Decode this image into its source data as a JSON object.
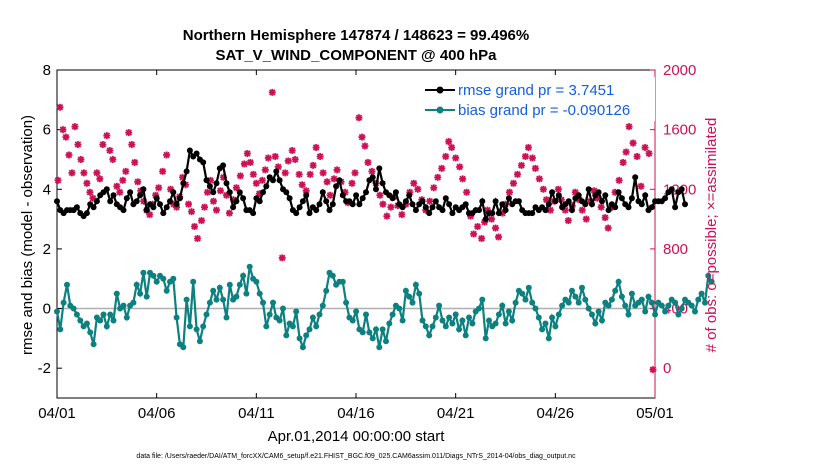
{
  "chart_data": {
    "type": "line",
    "title_line1": "Northern Hemisphere 147874 / 148623 = 99.496%",
    "title_line2": "SAT_V_WIND_COMPONENT @ 400 hPa",
    "xlabel": "Apr.01,2014 00:00:00 start",
    "ylabel_left": "rmse and bias (model - observation)",
    "ylabel_right": "# of obs: o=possible; ×=assimilated",
    "footnote": "data file: /Users/raeder/DAI/ATM_forcXX/CAM6_setup/f.e21.FHIST_BGC.f09_025.CAM6assim.011/Diags_NTrS_2014-04/obs_diag_output.nc",
    "xlim": [
      0,
      30
    ],
    "ylim_left": [
      -3,
      8
    ],
    "ylim_right": [
      -200,
      2000
    ],
    "x_ticks": [
      0,
      5,
      10,
      15,
      20,
      25,
      30
    ],
    "x_tick_labels": [
      "04/01",
      "04/06",
      "04/11",
      "04/16",
      "04/21",
      "04/26",
      "05/01"
    ],
    "y_left_ticks": [
      -2,
      0,
      2,
      4,
      6,
      8
    ],
    "y_left_tick_labels": [
      "-2",
      "0",
      "2",
      "4",
      "6",
      "8"
    ],
    "y_right_ticks": [
      0,
      400,
      800,
      1200,
      1600,
      2000
    ],
    "y_right_tick_labels": [
      "0",
      "400",
      "800",
      "1200",
      "1600",
      "2000"
    ],
    "zero_line": 0,
    "legend_position": "top-right",
    "colors": {
      "rmse": "#000000",
      "bias": "#0d8080",
      "obs": "#cc1155",
      "legend_text": "#1060e0",
      "zero_line": "#b0b0b0"
    },
    "series": [
      {
        "name": "rmse grand pr = 3.7451",
        "axis": "left",
        "values": [
          3.6,
          3.3,
          3.2,
          3.3,
          3.3,
          3.3,
          3.4,
          3.2,
          3.1,
          3.2,
          3.5,
          3.4,
          3.6,
          3.8,
          3.9,
          4.0,
          3.6,
          3.8,
          3.5,
          3.4,
          3.3,
          3.7,
          3.9,
          3.5,
          3.6,
          3.8,
          4.0,
          3.3,
          3.5,
          3.4,
          3.7,
          3.5,
          3.2,
          3.4,
          3.6,
          3.9,
          3.5,
          3.7,
          4.2,
          4.6,
          5.3,
          5.1,
          5.2,
          5.0,
          4.9,
          4.3,
          4.1,
          3.9,
          4.2,
          4.7,
          4.8,
          4.2,
          3.9,
          3.4,
          3.6,
          3.9,
          3.7,
          3.3,
          3.3,
          3.2,
          3.7,
          3.6,
          3.9,
          4.1,
          4.4,
          4.3,
          4.6,
          4.3,
          4.0,
          3.9,
          3.7,
          3.3,
          3.2,
          3.4,
          3.6,
          3.8,
          3.2,
          3.4,
          3.3,
          3.5,
          3.9,
          3.6,
          3.3,
          3.5,
          4.1,
          4.3,
          3.8,
          3.6,
          3.6,
          3.5,
          3.8,
          3.5,
          3.7,
          3.9,
          4.3,
          4.4,
          4.0,
          4.7,
          4.2,
          3.9,
          3.8,
          3.7,
          3.9,
          3.5,
          3.4,
          3.6,
          3.8,
          3.5,
          3.3,
          3.5,
          3.6,
          3.4,
          3.2,
          3.4,
          3.6,
          3.4,
          3.3,
          3.7,
          3.5,
          3.2,
          3.4,
          3.3,
          3.4,
          3.5,
          3.2,
          3.2,
          3.3,
          3.3,
          3.6,
          3.0,
          3.2,
          3.2,
          3.6,
          3.2,
          3.5,
          3.3,
          3.7,
          3.5,
          3.6,
          3.6,
          3.3,
          3.2,
          3.2,
          3.2,
          3.4,
          3.3,
          3.4,
          3.3,
          3.5,
          3.9,
          3.6,
          3.8,
          3.4,
          3.5,
          3.6,
          3.3,
          3.7,
          3.8,
          3.6,
          3.5,
          4.0,
          3.5,
          3.8,
          3.9,
          3.6,
          3.8,
          3.3,
          3.5,
          3.4,
          3.9,
          3.7,
          3.5,
          3.4,
          3.7,
          4.4,
          3.6,
          3.5,
          3.8,
          3.3,
          3.4,
          3.6,
          3.6,
          3.6,
          3.7,
          3.9,
          4.0,
          3.4,
          3.9,
          4.0,
          3.5
        ],
        "x_start": 0.0,
        "x_step": 0.1667
      },
      {
        "name": "bias grand pr = -0.090126",
        "axis": "left",
        "values": [
          -0.1,
          -0.7,
          0.2,
          0.8,
          0.1,
          0.0,
          -0.2,
          -0.4,
          -0.6,
          -0.5,
          -0.8,
          -1.2,
          -0.3,
          -0.4,
          -0.2,
          -0.6,
          -0.2,
          -0.4,
          0.5,
          0.0,
          0.1,
          -0.3,
          0.1,
          0.2,
          0.8,
          0.5,
          1.2,
          0.4,
          1.2,
          1.1,
          0.9,
          1.1,
          1.0,
          0.6,
          0.9,
          1.0,
          -0.3,
          -1.2,
          -1.3,
          0.3,
          -0.6,
          0.9,
          -0.7,
          -1.1,
          -0.6,
          -0.2,
          0.2,
          0.6,
          0.3,
          0.7,
          0.3,
          -0.3,
          0.8,
          0.3,
          0.4,
          0.8,
          1.1,
          0.5,
          1.4,
          1.0,
          0.9,
          0.5,
          0.2,
          -0.6,
          -0.2,
          0.2,
          -0.3,
          -0.4,
          0.0,
          -0.9,
          -0.5,
          -0.6,
          -0.1,
          -1.0,
          -1.3,
          -0.9,
          -0.7,
          -0.3,
          -0.6,
          -0.2,
          0.1,
          0.6,
          1.2,
          1.1,
          0.8,
          0.9,
          0.9,
          0.2,
          -0.3,
          -0.4,
          -0.1,
          -0.7,
          -0.8,
          -0.2,
          -0.8,
          -1.0,
          -0.7,
          -1.3,
          -0.7,
          -1.1,
          -0.5,
          -0.2,
          0.1,
          0.0,
          -0.4,
          0.6,
          0.4,
          0.2,
          0.8,
          0.5,
          -0.4,
          -0.6,
          -0.9,
          -0.6,
          -0.3,
          0.1,
          -0.4,
          -0.6,
          -0.3,
          -0.5,
          -0.2,
          -0.7,
          -0.4,
          -0.9,
          -0.3,
          -0.5,
          -0.1,
          0.0,
          0.3,
          -1.0,
          -0.4,
          -0.6,
          -0.5,
          -0.2,
          0.1,
          -0.5,
          -0.1,
          -0.4,
          0.2,
          0.6,
          0.5,
          0.3,
          0.7,
          0.2,
          0.0,
          -0.3,
          -0.7,
          -0.5,
          -1.0,
          -0.3,
          -0.6,
          -0.2,
          0.1,
          0.3,
          0.2,
          0.6,
          0.4,
          0.2,
          0.7,
          0.3,
          0.0,
          -0.2,
          -0.5,
          -0.1,
          -0.4,
          0.2,
          0.1,
          0.3,
          0.6,
          0.9,
          0.4,
          0.1,
          -0.2,
          0.5,
          0.1,
          0.2,
          0.3,
          -0.1,
          0.4,
          0.2,
          -0.2,
          0.2,
          0.1,
          -0.1,
          0.1,
          0.3,
          0.2,
          -0.2,
          0.0,
          0.3,
          0.2,
          0.1,
          -0.1,
          0.3,
          0.5,
          0.2,
          1.1,
          0.9
        ],
        "x_start": 0.0,
        "x_step": 0.1667
      }
    ],
    "obs_points": [
      [
        0.05,
        1260
      ],
      [
        0.15,
        1750
      ],
      [
        0.3,
        1600
      ],
      [
        0.45,
        1550
      ],
      [
        0.6,
        1430
      ],
      [
        0.75,
        1310
      ],
      [
        0.9,
        1620
      ],
      [
        1.05,
        1500
      ],
      [
        1.2,
        1400
      ],
      [
        1.35,
        1310
      ],
      [
        1.5,
        1240
      ],
      [
        1.65,
        1180
      ],
      [
        1.8,
        1140
      ],
      [
        2.0,
        1310
      ],
      [
        2.15,
        1270
      ],
      [
        2.3,
        1500
      ],
      [
        2.5,
        1560
      ],
      [
        2.65,
        1460
      ],
      [
        2.8,
        1400
      ],
      [
        3.0,
        1220
      ],
      [
        3.15,
        1180
      ],
      [
        3.3,
        1260
      ],
      [
        3.45,
        1320
      ],
      [
        3.6,
        1580
      ],
      [
        3.75,
        1500
      ],
      [
        3.9,
        1380
      ],
      [
        4.05,
        1250
      ],
      [
        4.2,
        1190
      ],
      [
        4.35,
        1120
      ],
      [
        4.5,
        1060
      ],
      [
        4.65,
        1030
      ],
      [
        4.8,
        1100
      ],
      [
        4.95,
        1160
      ],
      [
        5.1,
        1210
      ],
      [
        5.3,
        1320
      ],
      [
        5.5,
        1430
      ],
      [
        5.7,
        1200
      ],
      [
        5.85,
        1100
      ],
      [
        6.0,
        1080
      ],
      [
        6.15,
        1150
      ],
      [
        6.3,
        1280
      ],
      [
        6.45,
        1230
      ],
      [
        6.6,
        1100
      ],
      [
        6.75,
        1050
      ],
      [
        6.9,
        950
      ],
      [
        7.05,
        870
      ],
      [
        7.25,
        990
      ],
      [
        7.4,
        1080
      ],
      [
        7.55,
        1180
      ],
      [
        7.7,
        1260
      ],
      [
        7.85,
        1120
      ],
      [
        8.0,
        1060
      ],
      [
        8.2,
        1190
      ],
      [
        8.35,
        1280
      ],
      [
        8.5,
        1160
      ],
      [
        8.65,
        1040
      ],
      [
        8.85,
        1130
      ],
      [
        9.0,
        1210
      ],
      [
        9.2,
        1290
      ],
      [
        9.4,
        1370
      ],
      [
        9.55,
        1440
      ],
      [
        9.7,
        1380
      ],
      [
        9.85,
        1300
      ],
      [
        10.0,
        1240
      ],
      [
        10.15,
        1170
      ],
      [
        10.3,
        1260
      ],
      [
        10.45,
        1330
      ],
      [
        10.6,
        1410
      ],
      [
        10.8,
        1850
      ],
      [
        10.95,
        1420
      ],
      [
        11.1,
        1350
      ],
      [
        11.3,
        740
      ],
      [
        11.45,
        1310
      ],
      [
        11.6,
        1390
      ],
      [
        11.8,
        1460
      ],
      [
        11.95,
        1400
      ],
      [
        12.15,
        1300
      ],
      [
        12.3,
        1230
      ],
      [
        12.5,
        1190
      ],
      [
        12.7,
        1300
      ],
      [
        12.85,
        1360
      ],
      [
        13.0,
        1480
      ],
      [
        13.2,
        1420
      ],
      [
        13.35,
        1310
      ],
      [
        13.55,
        1250
      ],
      [
        13.7,
        1160
      ],
      [
        13.9,
        1270
      ],
      [
        14.05,
        1330
      ],
      [
        14.25,
        1250
      ],
      [
        14.45,
        1180
      ],
      [
        14.6,
        1110
      ],
      [
        14.8,
        1240
      ],
      [
        14.95,
        1310
      ],
      [
        15.15,
        1680
      ],
      [
        15.3,
        1550
      ],
      [
        15.45,
        1490
      ],
      [
        15.6,
        1380
      ],
      [
        15.8,
        1320
      ],
      [
        16.0,
        1240
      ],
      [
        16.2,
        1160
      ],
      [
        16.35,
        1100
      ],
      [
        16.55,
        1020
      ],
      [
        16.75,
        1080
      ],
      [
        16.9,
        1150
      ],
      [
        17.1,
        1090
      ],
      [
        17.3,
        1030
      ],
      [
        17.5,
        1100
      ],
      [
        17.7,
        1180
      ],
      [
        17.9,
        1240
      ],
      [
        18.1,
        1200
      ],
      [
        18.3,
        1130
      ],
      [
        18.5,
        1060
      ],
      [
        18.7,
        1120
      ],
      [
        18.9,
        1210
      ],
      [
        19.1,
        1280
      ],
      [
        19.3,
        1340
      ],
      [
        19.5,
        1420
      ],
      [
        19.65,
        1520
      ],
      [
        19.8,
        1480
      ],
      [
        20.0,
        1410
      ],
      [
        20.2,
        1350
      ],
      [
        20.35,
        1270
      ],
      [
        20.55,
        1180
      ],
      [
        20.75,
        1020
      ],
      [
        20.9,
        900
      ],
      [
        21.1,
        950
      ],
      [
        21.3,
        870
      ],
      [
        21.45,
        980
      ],
      [
        21.6,
        1060
      ],
      [
        21.8,
        1000
      ],
      [
        22.0,
        940
      ],
      [
        22.15,
        880
      ],
      [
        22.35,
        1040
      ],
      [
        22.5,
        1100
      ],
      [
        22.7,
        1180
      ],
      [
        22.9,
        1240
      ],
      [
        23.1,
        1300
      ],
      [
        23.3,
        1360
      ],
      [
        23.5,
        1420
      ],
      [
        23.65,
        1480
      ],
      [
        23.85,
        1410
      ],
      [
        24.0,
        1340
      ],
      [
        24.2,
        1270
      ],
      [
        24.4,
        1200
      ],
      [
        24.55,
        1130
      ],
      [
        24.75,
        1060
      ],
      [
        24.95,
        1120
      ],
      [
        25.15,
        1200
      ],
      [
        25.3,
        1130
      ],
      [
        25.5,
        1060
      ],
      [
        25.65,
        990
      ],
      [
        25.85,
        1090
      ],
      [
        26.0,
        1180
      ],
      [
        26.2,
        1130
      ],
      [
        26.35,
        1060
      ],
      [
        26.55,
        1000
      ],
      [
        26.75,
        1120
      ],
      [
        26.95,
        1190
      ],
      [
        27.1,
        1140
      ],
      [
        27.3,
        1080
      ],
      [
        27.5,
        1010
      ],
      [
        27.65,
        940
      ],
      [
        27.85,
        1080
      ],
      [
        28.0,
        1180
      ],
      [
        28.2,
        1260
      ],
      [
        28.4,
        1380
      ],
      [
        28.55,
        1450
      ],
      [
        28.7,
        1620
      ],
      [
        28.9,
        1510
      ],
      [
        29.1,
        1420
      ],
      [
        29.3,
        1220
      ],
      [
        29.5,
        1480
      ],
      [
        29.7,
        1440
      ],
      [
        29.9,
        -10
      ]
    ]
  }
}
